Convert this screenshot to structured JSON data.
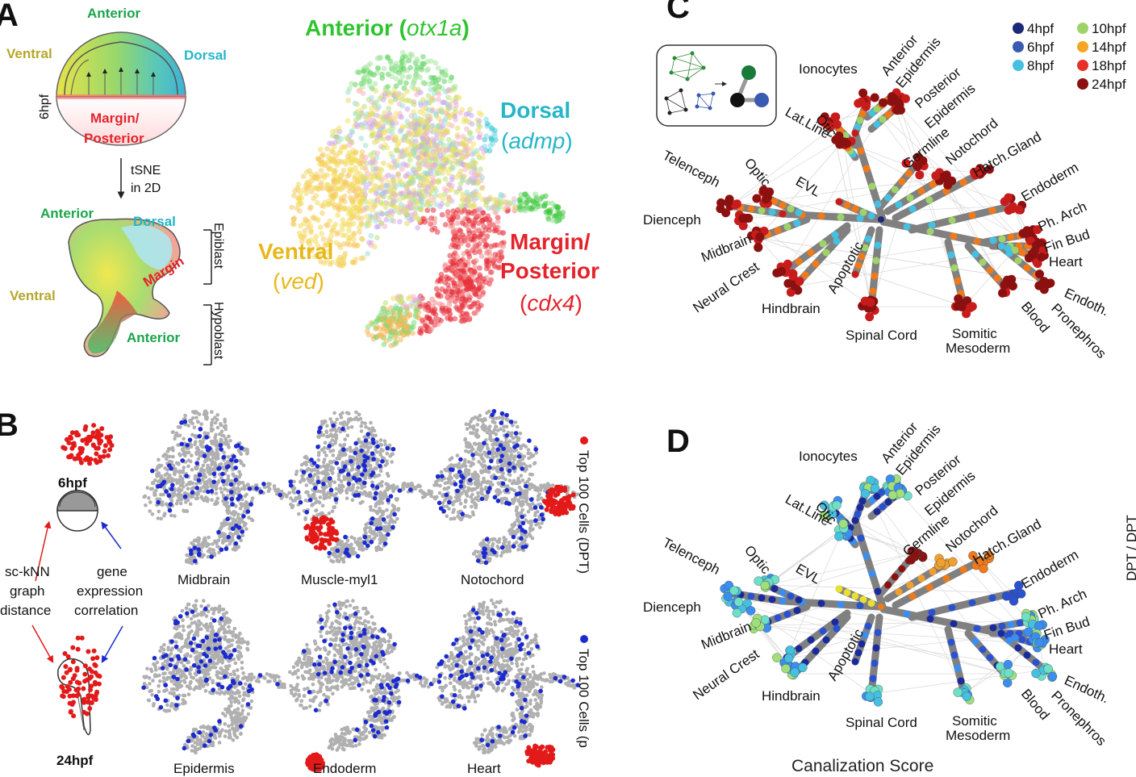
{
  "colors": {
    "anterior": "#1aa64a",
    "dorsal": "#25b6c8",
    "ventral": "#b4a72a",
    "margin": "#e4232b",
    "dpt_red": "#e21a1a",
    "gene_blue": "#1c2bd0",
    "tree_gray": "#808080",
    "cell_gray": "#b0b0b0"
  },
  "panel_a": {
    "letter": "A",
    "embryo": {
      "anterior": "Anterior",
      "ventral": "Ventral",
      "dorsal": "Dorsal",
      "margin": "Margin/",
      "posterior": "Posterior",
      "stage": "6hpf"
    },
    "arrow_text_1": "tSNE",
    "arrow_text_2": "in 2D",
    "tsne_shape": {
      "anterior_top": "Anterior",
      "dorsal": "Dorsal",
      "margin": "Margin",
      "ventral": "Ventral",
      "anterior_bottom": "Anterior",
      "epiblast": "Epiblast",
      "hypoblast": "Hypoblast"
    },
    "scatter_labels": {
      "anterior": "Anterior (",
      "anterior_gene": "otx1a",
      "close": ")",
      "dorsal": "Dorsal",
      "dorsal_gene_open": "(",
      "dorsal_gene": "admp",
      "ventral": "Ventral",
      "ventral_gene_open": "(",
      "ventral_gene": "ved",
      "margin_1": "Margin/",
      "margin_2": "Posterior",
      "margin_gene_open": "(",
      "margin_gene": "cdx4"
    }
  },
  "panel_b": {
    "letter": "B",
    "stage_top": "6hpf",
    "stage_bottom": "24hpf",
    "red_text": [
      "sc-kNN",
      "graph",
      "distance"
    ],
    "blue_text": [
      "gene",
      "expression",
      "correlation"
    ],
    "minis": [
      {
        "label": "Midbrain"
      },
      {
        "label": "Muscle-myl1"
      },
      {
        "label": "Notochord"
      },
      {
        "label": "Epidermis"
      },
      {
        "label": "Endoderm"
      },
      {
        "label": "Heart"
      }
    ],
    "legend_red": "Top 100 Cells (DPT)",
    "legend_blue": "Top 100 Cells (p"
  },
  "panel_c": {
    "letter": "C",
    "legend": [
      {
        "label": "4hpf",
        "color": "#1b2a78"
      },
      {
        "label": "6hpf",
        "color": "#3a5ab0"
      },
      {
        "label": "8hpf",
        "color": "#46c0e0"
      },
      {
        "label": "10hpf",
        "color": "#9fd36a"
      },
      {
        "label": "14hpf",
        "color": "#f5a623"
      },
      {
        "label": "18hpf",
        "color": "#e8302a"
      },
      {
        "label": "24hpf",
        "color": "#8b1010"
      }
    ]
  },
  "panel_d": {
    "letter": "D",
    "caption": "Canalization Score",
    "side_text": "DPT / DPT"
  },
  "tree_labels": [
    {
      "key": "ionocytes",
      "text": "Ionocytes"
    },
    {
      "key": "anterior_epi_1",
      "text": "Anterior"
    },
    {
      "key": "anterior_epi_2",
      "text": "Epidermis"
    },
    {
      "key": "posterior_epi_1",
      "text": "Posterior"
    },
    {
      "key": "posterior_epi_2",
      "text": "Epidermis"
    },
    {
      "key": "otic",
      "text": "Otic"
    },
    {
      "key": "latline",
      "text": "Lat.Line"
    },
    {
      "key": "germline",
      "text": "Germline"
    },
    {
      "key": "notochord",
      "text": "Notochord"
    },
    {
      "key": "hatch",
      "text": "Hatch.Gland"
    },
    {
      "key": "telenceph",
      "text": "Telenceph"
    },
    {
      "key": "optic",
      "text": "Optic"
    },
    {
      "key": "evl",
      "text": "EVL"
    },
    {
      "key": "endoderm",
      "text": "Endoderm"
    },
    {
      "key": "dienceph",
      "text": "Dienceph"
    },
    {
      "key": "pharch",
      "text": "Ph. Arch"
    },
    {
      "key": "finbud",
      "text": "Fin Bud"
    },
    {
      "key": "heart",
      "text": "Heart"
    },
    {
      "key": "midbrain",
      "text": "Midbrain"
    },
    {
      "key": "apoptotic",
      "text": "Apoptotic"
    },
    {
      "key": "neuralcrest",
      "text": "Neural Crest"
    },
    {
      "key": "endoth",
      "text": "Endoth."
    },
    {
      "key": "pronephros",
      "text": "Pronephros"
    },
    {
      "key": "hindbrain",
      "text": "Hindbrain"
    },
    {
      "key": "spinal",
      "text": "Spinal Cord"
    },
    {
      "key": "somitic_1",
      "text": "Somitic"
    },
    {
      "key": "somitic_2",
      "text": "Mesoderm"
    },
    {
      "key": "blood",
      "text": "Blood"
    }
  ]
}
